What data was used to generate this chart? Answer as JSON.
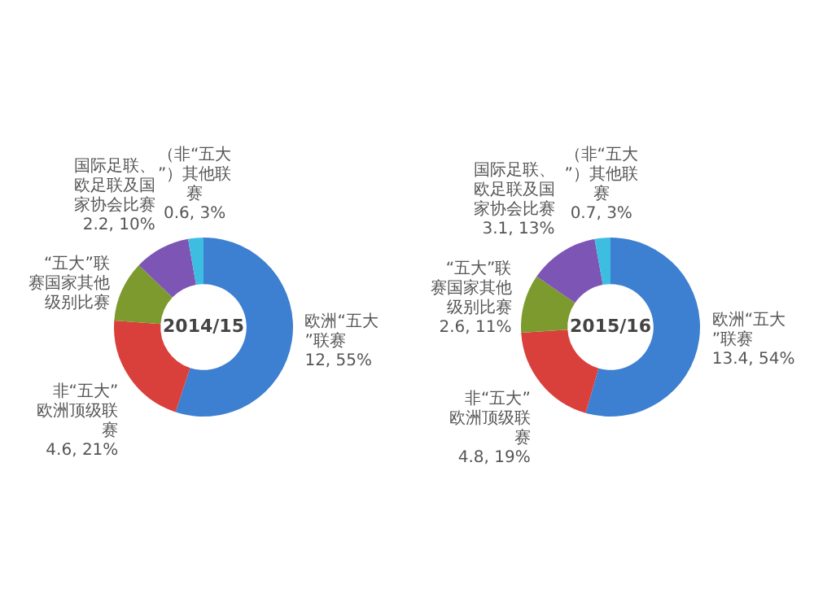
{
  "chart_data": [
    {
      "type": "donut",
      "title": "2014/15",
      "categories": [
        "欧洲“五大”联赛",
        "非“五大”欧洲顶级联赛",
        "“五大”联赛国家其他级别比赛",
        "国际足联、欧足联及国家协会比赛",
        "（非“五大”）其他联赛"
      ],
      "values": [
        12,
        4.6,
        2.4,
        2.2,
        0.6
      ],
      "value_labels": [
        "12, 55%",
        "4.6, 21%",
        null,
        "2.2, 10%",
        "0.6, 3%"
      ],
      "colors": [
        "#3d7fd0",
        "#d9403c",
        "#7d9a2e",
        "#7d55b5",
        "#3dbde0"
      ]
    },
    {
      "type": "donut",
      "title": "2015/16",
      "categories": [
        "欧洲“五大”联赛",
        "非“五大”欧洲顶级联赛",
        "“五大”联赛国家其他级别比赛",
        "国际足联、欧足联及国家协会比赛",
        "（非“五大”）其他联赛"
      ],
      "values": [
        13.4,
        4.8,
        2.6,
        3.1,
        0.7
      ],
      "value_labels": [
        "13.4, 54%",
        "4.8, 19%",
        "2.6, 11%",
        "3.1, 13%",
        "0.7, 3%"
      ],
      "colors": [
        "#3d7fd0",
        "#d9403c",
        "#7d9a2e",
        "#7d55b5",
        "#3dbde0"
      ]
    }
  ]
}
